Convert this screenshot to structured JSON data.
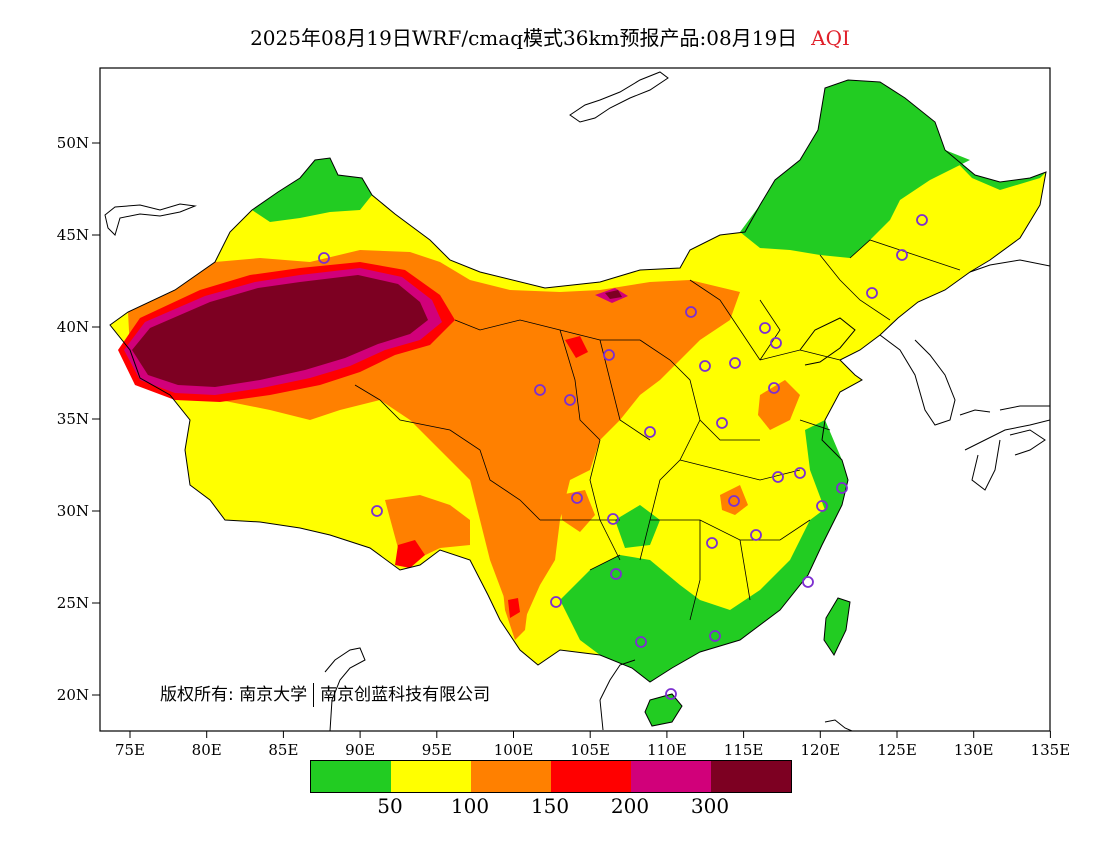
{
  "title": {
    "text": "2025年08月19日WRF/cmaq模式36km预报产品:08月19日",
    "variable": "AQI"
  },
  "axes": {
    "lat_labels": [
      "50N",
      "45N",
      "40N",
      "35N",
      "30N",
      "25N",
      "20N"
    ],
    "lon_labels": [
      "75E",
      "80E",
      "85E",
      "90E",
      "95E",
      "100E",
      "105E",
      "110E",
      "115E",
      "120E",
      "125E",
      "130E",
      "135E"
    ]
  },
  "colorbar": {
    "colors": [
      "#22cc22",
      "#ffff00",
      "#ff8000",
      "#ff0000",
      "#d1007a",
      "#7d0022"
    ],
    "labels": [
      "50",
      "100",
      "150",
      "200",
      "300"
    ]
  },
  "copyright": {
    "prefix": "版权所有: 南京大学",
    "suffix": "南京创蓝科技有限公司"
  },
  "colors": {
    "station_marker": "#7d2fd0",
    "title_accent": "#e0202a"
  }
}
